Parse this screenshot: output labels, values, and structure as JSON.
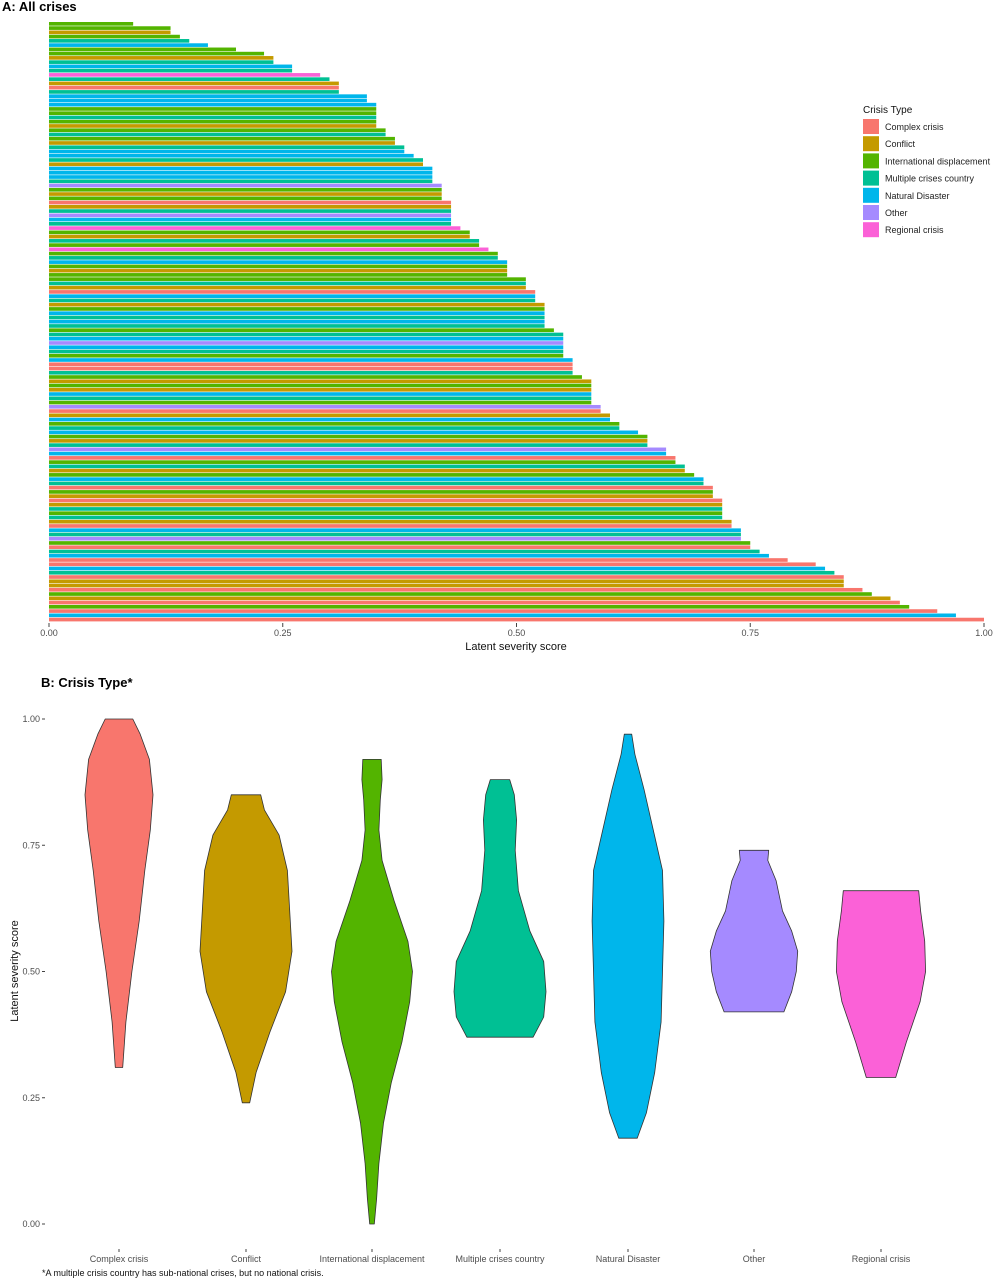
{
  "chart_data": [
    {
      "type": "bar",
      "orientation": "horizontal",
      "title": "A: All crises",
      "xlabel": "Latent severity score",
      "ylabel": "",
      "xlim": [
        0,
        1
      ],
      "x_ticks": [
        "0.00",
        "0.25",
        "0.50",
        "0.75",
        "1.00"
      ],
      "x_tick_values": [
        0,
        0.25,
        0.5,
        0.75,
        1.0
      ],
      "grid": false,
      "legend": {
        "title": "Crisis Type",
        "placement": "right",
        "entries": [
          {
            "name": "Complex crisis",
            "color": "#F8766D"
          },
          {
            "name": "Conflict",
            "color": "#C49A00"
          },
          {
            "name": "International displacement",
            "color": "#53B400"
          },
          {
            "name": "Multiple crises country",
            "color": "#00C094"
          },
          {
            "name": "Natural Disaster",
            "color": "#00B6EB"
          },
          {
            "name": "Other",
            "color": "#A58AFF"
          },
          {
            "name": "Regional crisis",
            "color": "#FB61D7"
          }
        ]
      },
      "bars": [
        {
          "value": 0.09,
          "type": "International displacement"
        },
        {
          "value": 0.13,
          "type": "International displacement"
        },
        {
          "value": 0.13,
          "type": "Conflict"
        },
        {
          "value": 0.14,
          "type": "International displacement"
        },
        {
          "value": 0.15,
          "type": "Multiple crises country"
        },
        {
          "value": 0.17,
          "type": "Natural Disaster"
        },
        {
          "value": 0.2,
          "type": "International displacement"
        },
        {
          "value": 0.23,
          "type": "International displacement"
        },
        {
          "value": 0.24,
          "type": "Conflict"
        },
        {
          "value": 0.24,
          "type": "Multiple crises country"
        },
        {
          "value": 0.26,
          "type": "Natural Disaster"
        },
        {
          "value": 0.26,
          "type": "Multiple crises country"
        },
        {
          "value": 0.29,
          "type": "Regional crisis"
        },
        {
          "value": 0.3,
          "type": "Multiple crises country"
        },
        {
          "value": 0.31,
          "type": "Conflict"
        },
        {
          "value": 0.31,
          "type": "Complex crisis"
        },
        {
          "value": 0.31,
          "type": "Multiple crises country"
        },
        {
          "value": 0.34,
          "type": "Natural Disaster"
        },
        {
          "value": 0.34,
          "type": "Natural Disaster"
        },
        {
          "value": 0.35,
          "type": "Natural Disaster"
        },
        {
          "value": 0.35,
          "type": "International displacement"
        },
        {
          "value": 0.35,
          "type": "International displacement"
        },
        {
          "value": 0.35,
          "type": "Multiple crises country"
        },
        {
          "value": 0.35,
          "type": "International displacement"
        },
        {
          "value": 0.35,
          "type": "Conflict"
        },
        {
          "value": 0.36,
          "type": "International displacement"
        },
        {
          "value": 0.36,
          "type": "Multiple crises country"
        },
        {
          "value": 0.37,
          "type": "International displacement"
        },
        {
          "value": 0.37,
          "type": "Conflict"
        },
        {
          "value": 0.38,
          "type": "Multiple crises country"
        },
        {
          "value": 0.38,
          "type": "Natural Disaster"
        },
        {
          "value": 0.39,
          "type": "Natural Disaster"
        },
        {
          "value": 0.4,
          "type": "Multiple crises country"
        },
        {
          "value": 0.4,
          "type": "Conflict"
        },
        {
          "value": 0.41,
          "type": "Natural Disaster"
        },
        {
          "value": 0.41,
          "type": "Natural Disaster"
        },
        {
          "value": 0.41,
          "type": "Natural Disaster"
        },
        {
          "value": 0.41,
          "type": "Multiple crises country"
        },
        {
          "value": 0.42,
          "type": "Other"
        },
        {
          "value": 0.42,
          "type": "International displacement"
        },
        {
          "value": 0.42,
          "type": "Conflict"
        },
        {
          "value": 0.42,
          "type": "International displacement"
        },
        {
          "value": 0.43,
          "type": "Complex crisis"
        },
        {
          "value": 0.43,
          "type": "Conflict"
        },
        {
          "value": 0.43,
          "type": "Multiple crises country"
        },
        {
          "value": 0.43,
          "type": "Other"
        },
        {
          "value": 0.43,
          "type": "Natural Disaster"
        },
        {
          "value": 0.43,
          "type": "Multiple crises country"
        },
        {
          "value": 0.44,
          "type": "Regional crisis"
        },
        {
          "value": 0.45,
          "type": "International displacement"
        },
        {
          "value": 0.45,
          "type": "Conflict"
        },
        {
          "value": 0.46,
          "type": "Multiple crises country"
        },
        {
          "value": 0.46,
          "type": "International displacement"
        },
        {
          "value": 0.47,
          "type": "Regional crisis"
        },
        {
          "value": 0.48,
          "type": "International displacement"
        },
        {
          "value": 0.48,
          "type": "Multiple crises country"
        },
        {
          "value": 0.49,
          "type": "Natural Disaster"
        },
        {
          "value": 0.49,
          "type": "International displacement"
        },
        {
          "value": 0.49,
          "type": "Conflict"
        },
        {
          "value": 0.49,
          "type": "International displacement"
        },
        {
          "value": 0.51,
          "type": "International displacement"
        },
        {
          "value": 0.51,
          "type": "Multiple crises country"
        },
        {
          "value": 0.51,
          "type": "Conflict"
        },
        {
          "value": 0.52,
          "type": "Complex crisis"
        },
        {
          "value": 0.52,
          "type": "Natural Disaster"
        },
        {
          "value": 0.52,
          "type": "Multiple crises country"
        },
        {
          "value": 0.53,
          "type": "Conflict"
        },
        {
          "value": 0.53,
          "type": "International displacement"
        },
        {
          "value": 0.53,
          "type": "Natural Disaster"
        },
        {
          "value": 0.53,
          "type": "Multiple crises country"
        },
        {
          "value": 0.53,
          "type": "Natural Disaster"
        },
        {
          "value": 0.53,
          "type": "Multiple crises country"
        },
        {
          "value": 0.54,
          "type": "International displacement"
        },
        {
          "value": 0.55,
          "type": "Multiple crises country"
        },
        {
          "value": 0.55,
          "type": "Natural Disaster"
        },
        {
          "value": 0.55,
          "type": "Other"
        },
        {
          "value": 0.55,
          "type": "Natural Disaster"
        },
        {
          "value": 0.55,
          "type": "Multiple crises country"
        },
        {
          "value": 0.55,
          "type": "International displacement"
        },
        {
          "value": 0.56,
          "type": "Natural Disaster"
        },
        {
          "value": 0.56,
          "type": "Complex crisis"
        },
        {
          "value": 0.56,
          "type": "Complex crisis"
        },
        {
          "value": 0.56,
          "type": "Multiple crises country"
        },
        {
          "value": 0.57,
          "type": "International displacement"
        },
        {
          "value": 0.58,
          "type": "Conflict"
        },
        {
          "value": 0.58,
          "type": "International displacement"
        },
        {
          "value": 0.58,
          "type": "Conflict"
        },
        {
          "value": 0.58,
          "type": "Natural Disaster"
        },
        {
          "value": 0.58,
          "type": "Multiple crises country"
        },
        {
          "value": 0.58,
          "type": "International displacement"
        },
        {
          "value": 0.59,
          "type": "Other"
        },
        {
          "value": 0.59,
          "type": "Complex crisis"
        },
        {
          "value": 0.6,
          "type": "Conflict"
        },
        {
          "value": 0.6,
          "type": "Natural Disaster"
        },
        {
          "value": 0.61,
          "type": "International displacement"
        },
        {
          "value": 0.61,
          "type": "Multiple crises country"
        },
        {
          "value": 0.63,
          "type": "Natural Disaster"
        },
        {
          "value": 0.64,
          "type": "International displacement"
        },
        {
          "value": 0.64,
          "type": "Conflict"
        },
        {
          "value": 0.64,
          "type": "Multiple crises country"
        },
        {
          "value": 0.66,
          "type": "Other"
        },
        {
          "value": 0.66,
          "type": "Natural Disaster"
        },
        {
          "value": 0.67,
          "type": "Complex crisis"
        },
        {
          "value": 0.67,
          "type": "International displacement"
        },
        {
          "value": 0.68,
          "type": "Multiple crises country"
        },
        {
          "value": 0.68,
          "type": "Conflict"
        },
        {
          "value": 0.69,
          "type": "International displacement"
        },
        {
          "value": 0.7,
          "type": "Natural Disaster"
        },
        {
          "value": 0.7,
          "type": "Multiple crises country"
        },
        {
          "value": 0.71,
          "type": "Complex crisis"
        },
        {
          "value": 0.71,
          "type": "International displacement"
        },
        {
          "value": 0.71,
          "type": "Conflict"
        },
        {
          "value": 0.72,
          "type": "Complex crisis"
        },
        {
          "value": 0.72,
          "type": "Conflict"
        },
        {
          "value": 0.72,
          "type": "Multiple crises country"
        },
        {
          "value": 0.72,
          "type": "International displacement"
        },
        {
          "value": 0.72,
          "type": "Multiple crises country"
        },
        {
          "value": 0.73,
          "type": "Conflict"
        },
        {
          "value": 0.73,
          "type": "Complex crisis"
        },
        {
          "value": 0.74,
          "type": "Natural Disaster"
        },
        {
          "value": 0.74,
          "type": "Multiple crises country"
        },
        {
          "value": 0.74,
          "type": "Other"
        },
        {
          "value": 0.75,
          "type": "International displacement"
        },
        {
          "value": 0.75,
          "type": "Complex crisis"
        },
        {
          "value": 0.76,
          "type": "Multiple crises country"
        },
        {
          "value": 0.77,
          "type": "Natural Disaster"
        },
        {
          "value": 0.79,
          "type": "Complex crisis"
        },
        {
          "value": 0.82,
          "type": "Complex crisis"
        },
        {
          "value": 0.83,
          "type": "Natural Disaster"
        },
        {
          "value": 0.84,
          "type": "Multiple crises country"
        },
        {
          "value": 0.85,
          "type": "Complex crisis"
        },
        {
          "value": 0.85,
          "type": "Conflict"
        },
        {
          "value": 0.85,
          "type": "Conflict"
        },
        {
          "value": 0.87,
          "type": "Complex crisis"
        },
        {
          "value": 0.88,
          "type": "International displacement"
        },
        {
          "value": 0.9,
          "type": "Conflict"
        },
        {
          "value": 0.91,
          "type": "Complex crisis"
        },
        {
          "value": 0.92,
          "type": "International displacement"
        },
        {
          "value": 0.95,
          "type": "Complex crisis"
        },
        {
          "value": 0.97,
          "type": "Natural Disaster"
        },
        {
          "value": 1.0,
          "type": "Complex crisis"
        }
      ]
    },
    {
      "type": "violin",
      "title": "B: Crisis Type*",
      "xlabel": "",
      "ylabel": "Latent severity score",
      "ylim": [
        0,
        1
      ],
      "y_ticks": [
        "0.00",
        "0.25",
        "0.50",
        "0.75",
        "1.00"
      ],
      "y_tick_values": [
        0,
        0.25,
        0.5,
        0.75,
        1.0
      ],
      "grid": false,
      "categories": [
        "Complex crisis",
        "Conflict",
        "International displacement",
        "Multiple crises country",
        "Natural Disaster",
        "Other",
        "Regional crisis"
      ],
      "colors": [
        "#F8766D",
        "#C49A00",
        "#53B400",
        "#00C094",
        "#00B6EB",
        "#A58AFF",
        "#FB61D7"
      ],
      "violins": [
        {
          "category": "Complex crisis",
          "profile": [
            [
              0.31,
              0.08
            ],
            [
              0.4,
              0.15
            ],
            [
              0.5,
              0.28
            ],
            [
              0.6,
              0.44
            ],
            [
              0.7,
              0.56
            ],
            [
              0.78,
              0.68
            ],
            [
              0.85,
              0.74
            ],
            [
              0.92,
              0.66
            ],
            [
              0.97,
              0.46
            ],
            [
              1.0,
              0.3
            ]
          ]
        },
        {
          "category": "Conflict",
          "profile": [
            [
              0.24,
              0.08
            ],
            [
              0.3,
              0.22
            ],
            [
              0.38,
              0.52
            ],
            [
              0.46,
              0.86
            ],
            [
              0.54,
              1.0
            ],
            [
              0.62,
              0.95
            ],
            [
              0.7,
              0.9
            ],
            [
              0.77,
              0.72
            ],
            [
              0.82,
              0.4
            ],
            [
              0.85,
              0.32
            ]
          ]
        },
        {
          "category": "International displacement",
          "profile": [
            [
              0.0,
              0.05
            ],
            [
              0.05,
              0.1
            ],
            [
              0.12,
              0.15
            ],
            [
              0.2,
              0.25
            ],
            [
              0.28,
              0.42
            ],
            [
              0.36,
              0.65
            ],
            [
              0.44,
              0.82
            ],
            [
              0.5,
              0.88
            ],
            [
              0.56,
              0.78
            ],
            [
              0.64,
              0.48
            ],
            [
              0.72,
              0.22
            ],
            [
              0.78,
              0.15
            ],
            [
              0.84,
              0.18
            ],
            [
              0.88,
              0.22
            ],
            [
              0.92,
              0.2
            ]
          ]
        },
        {
          "category": "Multiple crises country",
          "profile": [
            [
              0.37,
              0.72
            ],
            [
              0.41,
              0.95
            ],
            [
              0.46,
              1.0
            ],
            [
              0.52,
              0.95
            ],
            [
              0.58,
              0.65
            ],
            [
              0.66,
              0.4
            ],
            [
              0.74,
              0.33
            ],
            [
              0.8,
              0.36
            ],
            [
              0.85,
              0.31
            ],
            [
              0.88,
              0.21
            ]
          ]
        },
        {
          "category": "Natural Disaster",
          "profile": [
            [
              0.17,
              0.2
            ],
            [
              0.22,
              0.4
            ],
            [
              0.3,
              0.58
            ],
            [
              0.4,
              0.72
            ],
            [
              0.5,
              0.75
            ],
            [
              0.6,
              0.78
            ],
            [
              0.7,
              0.75
            ],
            [
              0.78,
              0.55
            ],
            [
              0.86,
              0.35
            ],
            [
              0.93,
              0.15
            ],
            [
              0.97,
              0.08
            ]
          ]
        },
        {
          "category": "Other",
          "profile": [
            [
              0.42,
              0.65
            ],
            [
              0.46,
              0.82
            ],
            [
              0.5,
              0.92
            ],
            [
              0.54,
              0.95
            ],
            [
              0.58,
              0.82
            ],
            [
              0.62,
              0.62
            ],
            [
              0.68,
              0.48
            ],
            [
              0.72,
              0.3
            ],
            [
              0.74,
              0.32
            ]
          ]
        },
        {
          "category": "Regional crisis",
          "profile": [
            [
              0.29,
              0.32
            ],
            [
              0.36,
              0.55
            ],
            [
              0.44,
              0.85
            ],
            [
              0.5,
              0.97
            ],
            [
              0.56,
              0.95
            ],
            [
              0.62,
              0.86
            ],
            [
              0.66,
              0.82
            ]
          ]
        }
      ],
      "footnote": "*A multiple crisis country has sub-national crises, but no national crisis."
    }
  ]
}
